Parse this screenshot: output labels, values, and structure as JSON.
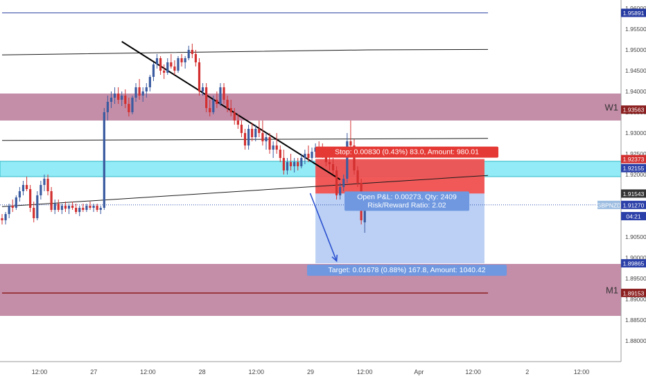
{
  "chart_data": {
    "type": "candlestick",
    "symbol": "GBPNZD",
    "colors": {
      "up": "#3a5ba0",
      "down": "#d32f2f",
      "zone": "#b46d8f",
      "cyan_zone": "#7fe8f5",
      "stop_zone": "#f05050",
      "target_zone": "#b7cdf3",
      "axis_text": "#444444",
      "grid_line": "#1a1a1a"
    },
    "ylim": [
      1.875,
      1.962
    ],
    "y_ticks": [
      "1.96000",
      "1.95500",
      "1.95000",
      "1.94500",
      "1.94000",
      "1.93500",
      "1.93000",
      "1.92500",
      "1.92000",
      "1.91500",
      "1.91000",
      "1.90500",
      "1.90000",
      "1.89500",
      "1.89000",
      "1.88500",
      "1.88000"
    ],
    "x_ticks": [
      {
        "label": "12:00",
        "pos": 0
      },
      {
        "label": "27",
        "pos": 1
      },
      {
        "label": "12:00",
        "pos": 2
      },
      {
        "label": "28",
        "pos": 3
      },
      {
        "label": "12:00",
        "pos": 4
      },
      {
        "label": "29",
        "pos": 5
      },
      {
        "label": "12:00",
        "pos": 6
      },
      {
        "label": "Apr",
        "pos": 7
      },
      {
        "label": "12:00",
        "pos": 8
      },
      {
        "label": "2",
        "pos": 9
      },
      {
        "label": "12:00",
        "pos": 10
      }
    ],
    "candles": [
      [
        1.9095,
        1.9105,
        1.908,
        1.909
      ],
      [
        1.909,
        1.911,
        1.908,
        1.9105
      ],
      [
        1.9105,
        1.913,
        1.9095,
        1.9125
      ],
      [
        1.9125,
        1.914,
        1.911,
        1.912
      ],
      [
        1.912,
        1.915,
        1.9115,
        1.9145
      ],
      [
        1.9145,
        1.917,
        1.9135,
        1.916
      ],
      [
        1.916,
        1.9185,
        1.915,
        1.9175
      ],
      [
        1.9175,
        1.9195,
        1.916,
        1.9165
      ],
      [
        1.9165,
        1.9175,
        1.911,
        1.912
      ],
      [
        1.912,
        1.9135,
        1.9085,
        1.9095
      ],
      [
        1.9095,
        1.916,
        1.909,
        1.915
      ],
      [
        1.915,
        1.9185,
        1.914,
        1.9175
      ],
      [
        1.9175,
        1.92,
        1.916,
        1.919
      ],
      [
        1.919,
        1.92,
        1.915,
        1.916
      ],
      [
        1.916,
        1.917,
        1.911,
        1.9115
      ],
      [
        1.9115,
        1.914,
        1.9105,
        1.913
      ],
      [
        1.913,
        1.914,
        1.911,
        1.9115
      ],
      [
        1.9115,
        1.913,
        1.9105,
        1.9125
      ],
      [
        1.9125,
        1.9135,
        1.911,
        1.9118
      ],
      [
        1.9118,
        1.913,
        1.9105,
        1.9125
      ],
      [
        1.9125,
        1.9135,
        1.9115,
        1.912
      ],
      [
        1.912,
        1.913,
        1.9105,
        1.911
      ],
      [
        1.911,
        1.9125,
        1.91,
        1.912
      ],
      [
        1.912,
        1.913,
        1.911,
        1.9115
      ],
      [
        1.9115,
        1.913,
        1.911,
        1.9125
      ],
      [
        1.9125,
        1.9135,
        1.9115,
        1.912
      ],
      [
        1.912,
        1.913,
        1.911,
        1.9125
      ],
      [
        1.9125,
        1.913,
        1.911,
        1.9115
      ],
      [
        1.9115,
        1.9125,
        1.9105,
        1.912
      ],
      [
        1.912,
        1.936,
        1.9115,
        1.935
      ],
      [
        1.935,
        1.939,
        1.933,
        1.9375
      ],
      [
        1.9375,
        1.94,
        1.936,
        1.9385
      ],
      [
        1.9385,
        1.941,
        1.937,
        1.9395
      ],
      [
        1.9395,
        1.941,
        1.937,
        1.938
      ],
      [
        1.938,
        1.94,
        1.9365,
        1.939
      ],
      [
        1.939,
        1.9405,
        1.936,
        1.937
      ],
      [
        1.937,
        1.9385,
        1.934,
        1.935
      ],
      [
        1.935,
        1.939,
        1.9345,
        1.9385
      ],
      [
        1.9385,
        1.942,
        1.9375,
        1.941
      ],
      [
        1.941,
        1.943,
        1.938,
        1.939
      ],
      [
        1.939,
        1.941,
        1.9375,
        1.94
      ],
      [
        1.94,
        1.942,
        1.9385,
        1.941
      ],
      [
        1.941,
        1.944,
        1.94,
        1.9435
      ],
      [
        1.9435,
        1.947,
        1.9425,
        1.9465
      ],
      [
        1.9465,
        1.949,
        1.9455,
        1.948
      ],
      [
        1.948,
        1.9485,
        1.944,
        1.945
      ],
      [
        1.945,
        1.9465,
        1.943,
        1.9445
      ],
      [
        1.9445,
        1.948,
        1.944,
        1.947
      ],
      [
        1.947,
        1.949,
        1.9455,
        1.946
      ],
      [
        1.946,
        1.9475,
        1.944,
        1.945
      ],
      [
        1.945,
        1.9485,
        1.9445,
        1.948
      ],
      [
        1.948,
        1.949,
        1.946,
        1.947
      ],
      [
        1.947,
        1.9485,
        1.9455,
        1.948
      ],
      [
        1.948,
        1.951,
        1.9475,
        1.95
      ],
      [
        1.95,
        1.9515,
        1.948,
        1.949
      ],
      [
        1.949,
        1.95,
        1.946,
        1.947
      ],
      [
        1.947,
        1.948,
        1.939,
        1.94
      ],
      [
        1.94,
        1.942,
        1.939,
        1.941
      ],
      [
        1.941,
        1.942,
        1.935,
        1.936
      ],
      [
        1.936,
        1.938,
        1.934,
        1.935
      ],
      [
        1.935,
        1.939,
        1.9345,
        1.938
      ],
      [
        1.938,
        1.94,
        1.936,
        1.937
      ],
      [
        1.937,
        1.942,
        1.9365,
        1.941
      ],
      [
        1.941,
        1.942,
        1.937,
        1.938
      ],
      [
        1.938,
        1.939,
        1.935,
        1.936
      ],
      [
        1.936,
        1.938,
        1.934,
        1.935
      ],
      [
        1.935,
        1.936,
        1.932,
        1.933
      ],
      [
        1.933,
        1.9345,
        1.931,
        1.932
      ],
      [
        1.932,
        1.933,
        1.929,
        1.93
      ],
      [
        1.93,
        1.931,
        1.926,
        1.927
      ],
      [
        1.927,
        1.932,
        1.926,
        1.931
      ],
      [
        1.931,
        1.9325,
        1.928,
        1.929
      ],
      [
        1.929,
        1.932,
        1.928,
        1.931
      ],
      [
        1.931,
        1.933,
        1.929,
        1.93
      ],
      [
        1.93,
        1.933,
        1.927,
        1.928
      ],
      [
        1.928,
        1.93,
        1.926,
        1.929
      ],
      [
        1.929,
        1.93,
        1.925,
        1.926
      ],
      [
        1.926,
        1.928,
        1.924,
        1.927
      ],
      [
        1.927,
        1.93,
        1.925,
        1.926
      ],
      [
        1.926,
        1.927,
        1.923,
        1.924
      ],
      [
        1.924,
        1.926,
        1.92,
        1.921
      ],
      [
        1.921,
        1.924,
        1.92,
        1.923
      ],
      [
        1.923,
        1.925,
        1.921,
        1.922
      ],
      [
        1.922,
        1.924,
        1.9205,
        1.923
      ],
      [
        1.923,
        1.924,
        1.921,
        1.922
      ],
      [
        1.922,
        1.925,
        1.9215,
        1.924
      ],
      [
        1.924,
        1.926,
        1.9225,
        1.925
      ],
      [
        1.925,
        1.927,
        1.923,
        1.924
      ],
      [
        1.924,
        1.9265,
        1.923,
        1.9255
      ],
      [
        1.9255,
        1.9275,
        1.924,
        1.9265
      ],
      [
        1.9265,
        1.928,
        1.925,
        1.926
      ],
      [
        1.926,
        1.9275,
        1.924,
        1.925
      ],
      [
        1.925,
        1.926,
        1.922,
        1.923
      ],
      [
        1.923,
        1.9245,
        1.921,
        1.9225
      ],
      [
        1.9225,
        1.924,
        1.92,
        1.921
      ],
      [
        1.921,
        1.922,
        1.914,
        1.915
      ],
      [
        1.915,
        1.918,
        1.914,
        1.917
      ],
      [
        1.917,
        1.92,
        1.916,
        1.919
      ],
      [
        1.919,
        1.93,
        1.918,
        1.928
      ],
      [
        1.928,
        1.933,
        1.926,
        1.927
      ],
      [
        1.927,
        1.9285,
        1.92,
        1.921
      ],
      [
        1.921,
        1.922,
        1.917,
        1.918
      ],
      [
        1.918,
        1.919,
        1.908,
        1.909
      ],
      [
        1.9085,
        1.914,
        1.906,
        1.913
      ]
    ],
    "trendlines": [
      {
        "name": "upper-channel-line",
        "color": "#1a1a1a",
        "width": 1,
        "points": [
          [
            0,
            1.9488
          ],
          [
            104,
            1.95
          ],
          [
            138,
            1.9501
          ]
        ]
      },
      {
        "name": "middle-channel-line",
        "color": "#1a1a1a",
        "width": 1,
        "points": [
          [
            0,
            1.9282
          ],
          [
            138,
            1.9287
          ]
        ]
      },
      {
        "name": "lower-rising-line",
        "color": "#1a1a1a",
        "width": 1,
        "points": [
          [
            0,
            1.9123
          ],
          [
            138,
            1.9198
          ]
        ]
      },
      {
        "name": "descending-trendline",
        "color": "#000000",
        "width": 2,
        "points": [
          [
            34,
            1.952
          ],
          [
            96,
            1.9188
          ]
        ]
      },
      {
        "name": "support-line-m1",
        "color": "#8b1e1e",
        "width": 1.5,
        "points": [
          [
            0,
            1.8915
          ],
          [
            138,
            1.8915
          ]
        ]
      },
      {
        "name": "resistance-line-top",
        "color": "#3040a0",
        "width": 1,
        "points": [
          [
            0,
            1.9589
          ],
          [
            138,
            1.9589
          ]
        ]
      }
    ],
    "zones": [
      {
        "name": "w1-zone",
        "ymin": 1.933,
        "ymax": 1.9395,
        "color": "#b46d8f",
        "label": "W1"
      },
      {
        "name": "m1-zone",
        "ymin": 1.886,
        "ymax": 1.8985,
        "color": "#b46d8f",
        "label": "M1"
      },
      {
        "name": "cyan-zone",
        "ymin": 1.9195,
        "ymax": 1.9232,
        "color": "#7fe8f5",
        "label": ""
      }
    ],
    "position": {
      "x_start": 89,
      "x_end": 137,
      "entry": 1.91543,
      "stop": 1.92373,
      "target": 1.89865,
      "stop_label": "Stop: 0.00830 (0.43%) 83.0, Amount: 980.01",
      "pnl_label": "Open P&L: 0.00273, Qty: 2409",
      "rr_label": "Risk/Reward Ratio: 2.02",
      "target_label": "Target: 0.01678 (0.88%) 167.8, Amount: 1040.42"
    },
    "arrow": {
      "from": [
        87.5,
        1.9155
      ],
      "to": [
        95,
        1.8992
      ]
    },
    "price_badges": [
      {
        "label": "1.95891",
        "value": 1.95891,
        "color": "#2439a0"
      },
      {
        "label": "1.93563",
        "value": 1.93563,
        "color": "#8b1e1e"
      },
      {
        "label": "1.92373",
        "value": 1.92373,
        "color": "#d32f2f"
      },
      {
        "label": "1.92155",
        "value": 1.92155,
        "color": "#2a3fa8"
      },
      {
        "label": "1.91543",
        "value": 1.91543,
        "color": "#333333"
      },
      {
        "label": "GBPNZD",
        "value": 1.9127,
        "color": "#9bbce0"
      },
      {
        "label": "1.91270",
        "value": 1.9127,
        "color": "#2a3fa8"
      },
      {
        "label": "04:21",
        "value": 1.91,
        "color": "#2a3fa8"
      },
      {
        "label": "1.89865",
        "value": 1.89865,
        "color": "#2a3fa8"
      },
      {
        "label": "1.89153",
        "value": 1.89153,
        "color": "#8b1e1e"
      }
    ],
    "current_price_line": 1.9127
  }
}
